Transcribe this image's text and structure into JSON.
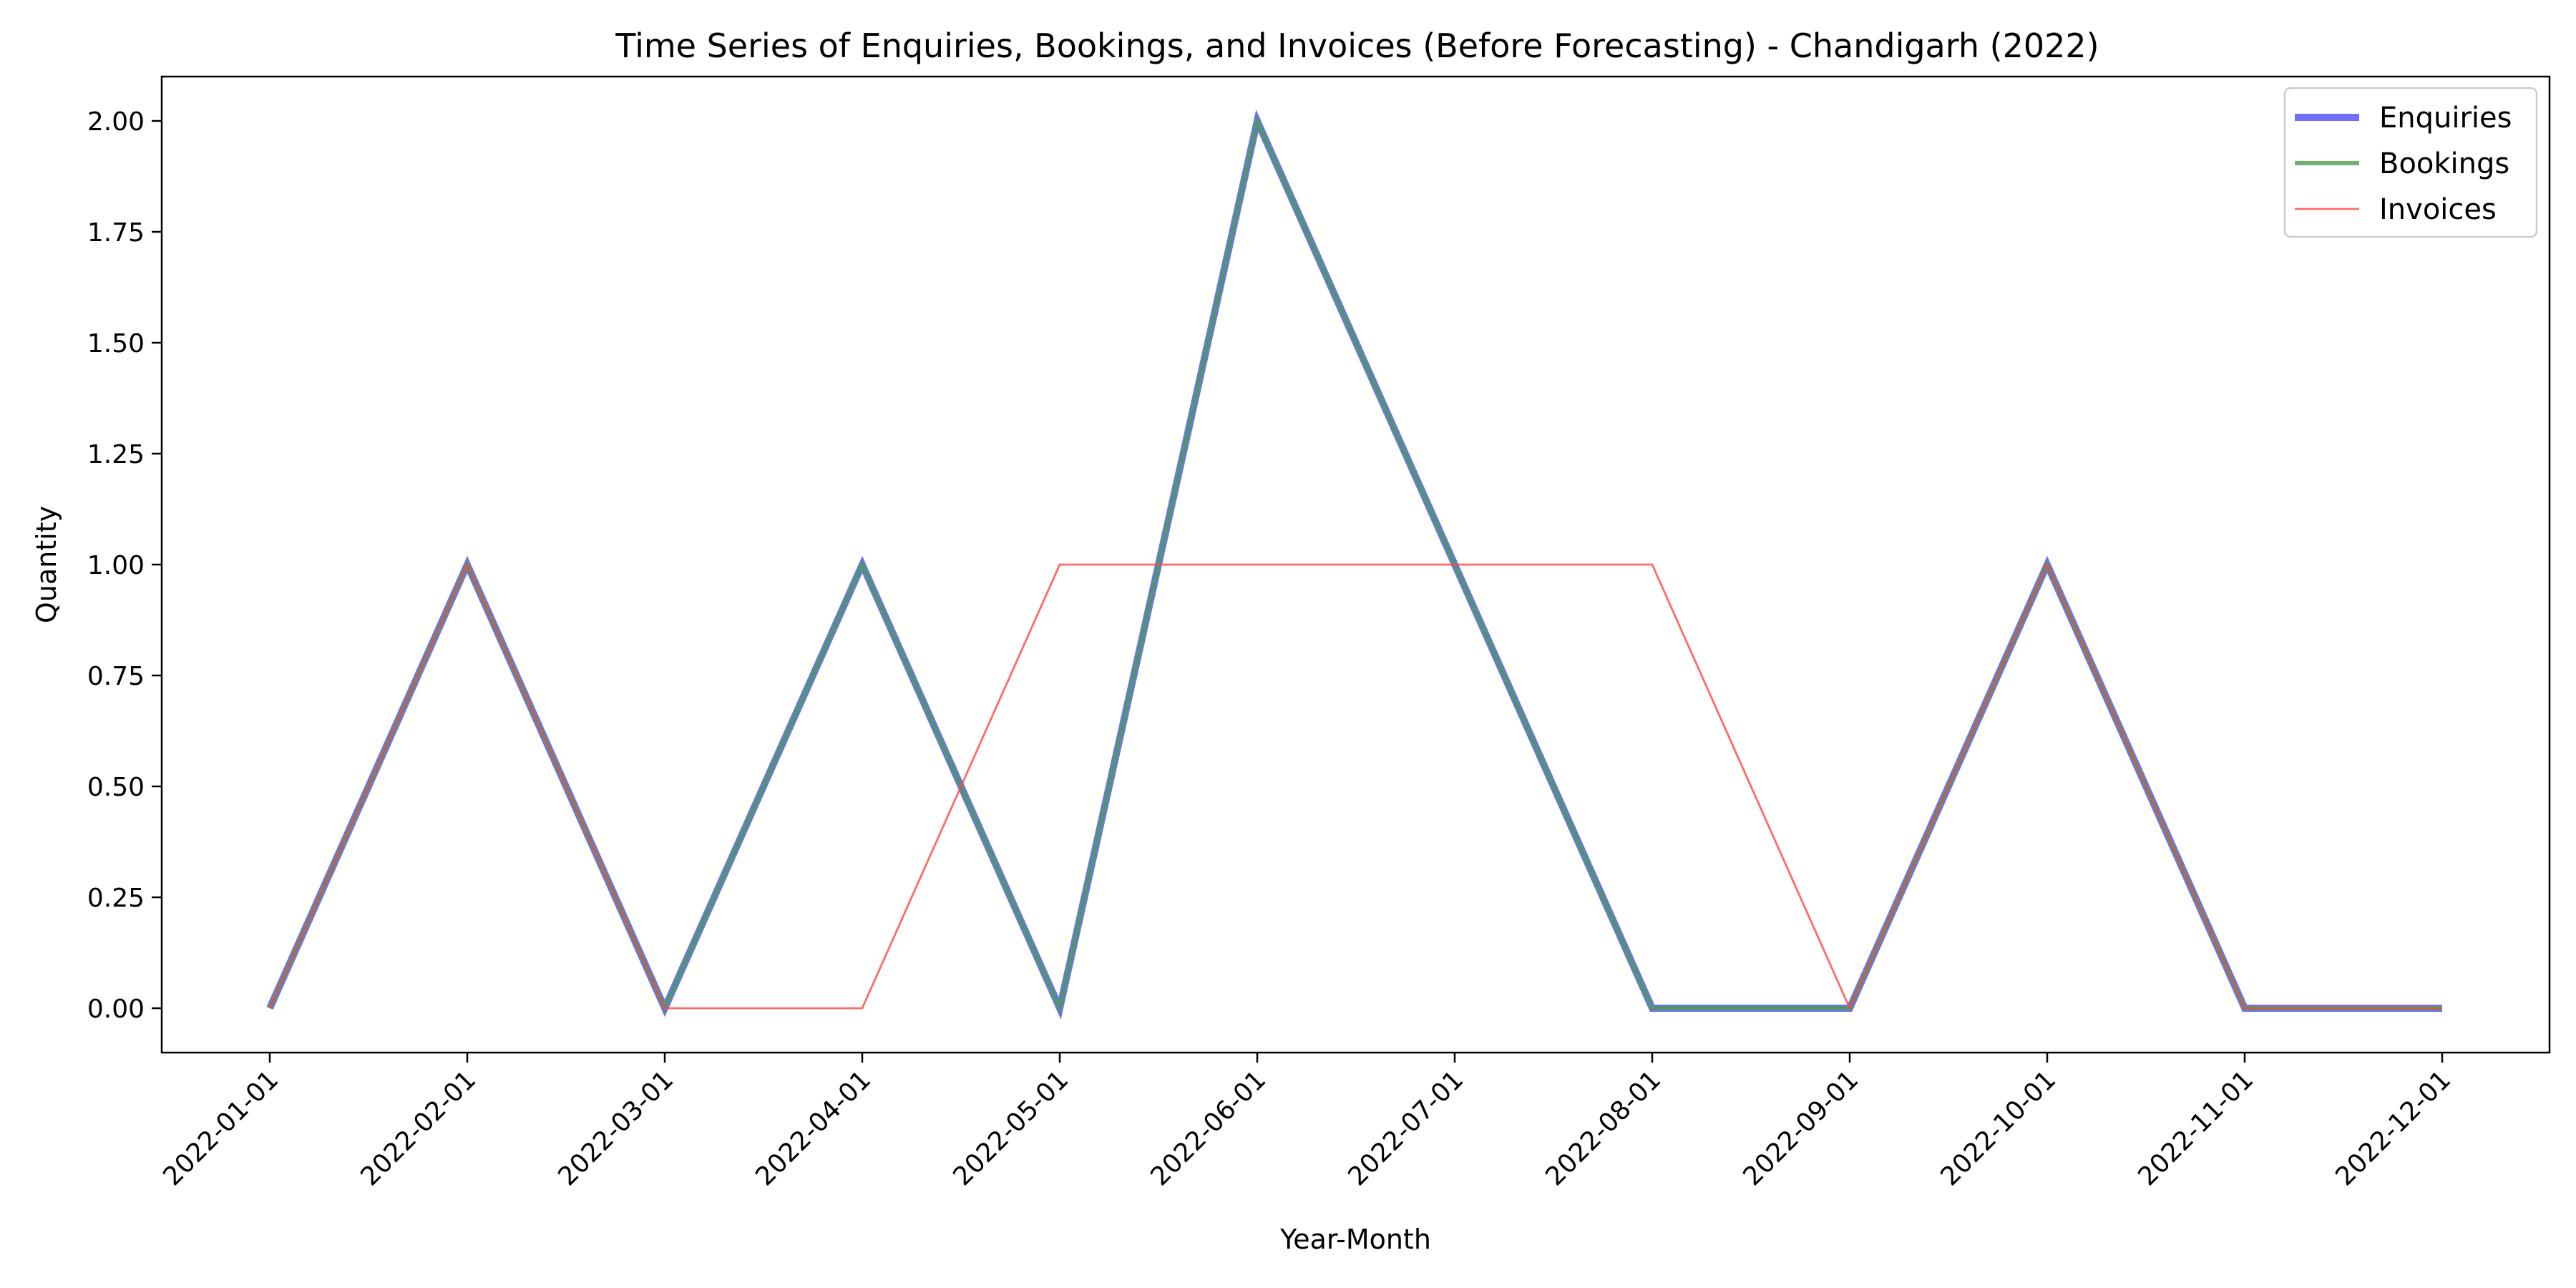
{
  "chart_data": {
    "type": "line",
    "title": "Time Series of Enquiries, Bookings, and Invoices (Before Forecasting) - Chandigarh (2022)",
    "xlabel": "Year-Month",
    "ylabel": "Quantity",
    "categories": [
      "2022-01-01",
      "2022-02-01",
      "2022-03-01",
      "2022-04-01",
      "2022-05-01",
      "2022-06-01",
      "2022-07-01",
      "2022-08-01",
      "2022-09-01",
      "2022-10-01",
      "2022-11-01",
      "2022-12-01"
    ],
    "ylim": [
      -0.1,
      2.1
    ],
    "yticks": [
      "0.00",
      "0.25",
      "0.50",
      "0.75",
      "1.00",
      "1.25",
      "1.50",
      "1.75",
      "2.00"
    ],
    "grid": false,
    "legend_position": "top-right",
    "series": [
      {
        "name": "Enquiries",
        "color": "#4b4bff",
        "values": [
          0,
          1,
          0,
          1,
          0,
          2,
          1,
          0,
          0,
          1,
          0,
          0
        ]
      },
      {
        "name": "Bookings",
        "color": "#4c9e4c",
        "values": [
          0,
          1,
          0,
          1,
          0,
          2,
          1,
          0,
          0,
          1,
          0,
          0
        ]
      },
      {
        "name": "Invoices",
        "color": "#ff4444",
        "values": [
          0,
          1,
          0,
          0,
          1,
          1,
          1,
          1,
          0,
          1,
          0,
          0
        ]
      }
    ]
  }
}
